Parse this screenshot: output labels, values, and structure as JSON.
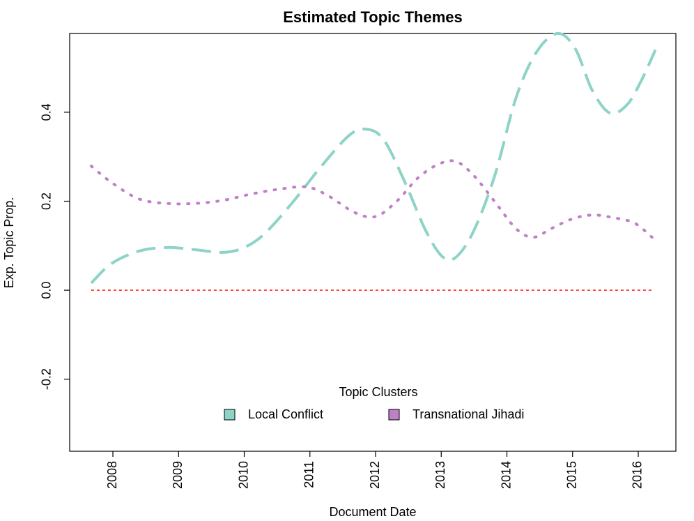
{
  "chart_data": {
    "type": "line",
    "title": "Estimated Topic Themes",
    "x_label": "Document Date",
    "y_label": "Exp. Topic Prop.",
    "xlim": [
      2007.342,
      2016.573
    ],
    "ylim": [
      -0.362,
      0.577
    ],
    "xticks": [
      2008,
      2009,
      2010,
      2011,
      2012,
      2013,
      2014,
      2015,
      2016
    ],
    "yticks": [
      -0.2,
      {
        "value": 0,
        "label": "0.0"
      },
      0.2,
      0.4
    ],
    "reference_line": {
      "value": 0,
      "color": "#ff0000",
      "x": [
        2007.67,
        2016.21
      ]
    },
    "legend_title": "Topic Clusters",
    "legend_position": "bottom",
    "series": [
      {
        "name": "Local Conflict",
        "color": "#8dd3c7",
        "style": "dashed",
        "x": [
          2007.67,
          2007.98,
          2008.4,
          2008.83,
          2009.25,
          2009.68,
          2010.0,
          2010.31,
          2010.74,
          2011.16,
          2011.59,
          2011.85,
          2012.12,
          2012.44,
          2012.76,
          2013.02,
          2013.23,
          2013.5,
          2013.82,
          2014.14,
          2014.45,
          2014.77,
          2015.04,
          2015.3,
          2015.57,
          2015.83,
          2016.05,
          2016.26
        ],
        "values": [
          0.016,
          0.06,
          0.088,
          0.096,
          0.091,
          0.085,
          0.096,
          0.127,
          0.198,
          0.276,
          0.347,
          0.362,
          0.339,
          0.245,
          0.135,
          0.075,
          0.075,
          0.135,
          0.26,
          0.433,
          0.535,
          0.577,
          0.543,
          0.449,
          0.398,
          0.417,
          0.472,
          0.54
        ]
      },
      {
        "name": "Transnational Jihadi",
        "color": "#bf80c8",
        "style": "dotted",
        "x": [
          2007.67,
          2007.98,
          2008.4,
          2008.83,
          2009.25,
          2009.68,
          2010.1,
          2010.53,
          2010.95,
          2011.27,
          2011.69,
          2012.01,
          2012.33,
          2012.65,
          2012.97,
          2013.23,
          2013.5,
          2013.82,
          2014.14,
          2014.4,
          2014.67,
          2014.99,
          2015.3,
          2015.62,
          2015.94,
          2016.21
        ],
        "values": [
          0.279,
          0.242,
          0.205,
          0.195,
          0.195,
          0.202,
          0.216,
          0.227,
          0.232,
          0.213,
          0.174,
          0.166,
          0.201,
          0.253,
          0.284,
          0.289,
          0.257,
          0.198,
          0.138,
          0.119,
          0.138,
          0.16,
          0.169,
          0.163,
          0.151,
          0.119
        ]
      }
    ]
  }
}
